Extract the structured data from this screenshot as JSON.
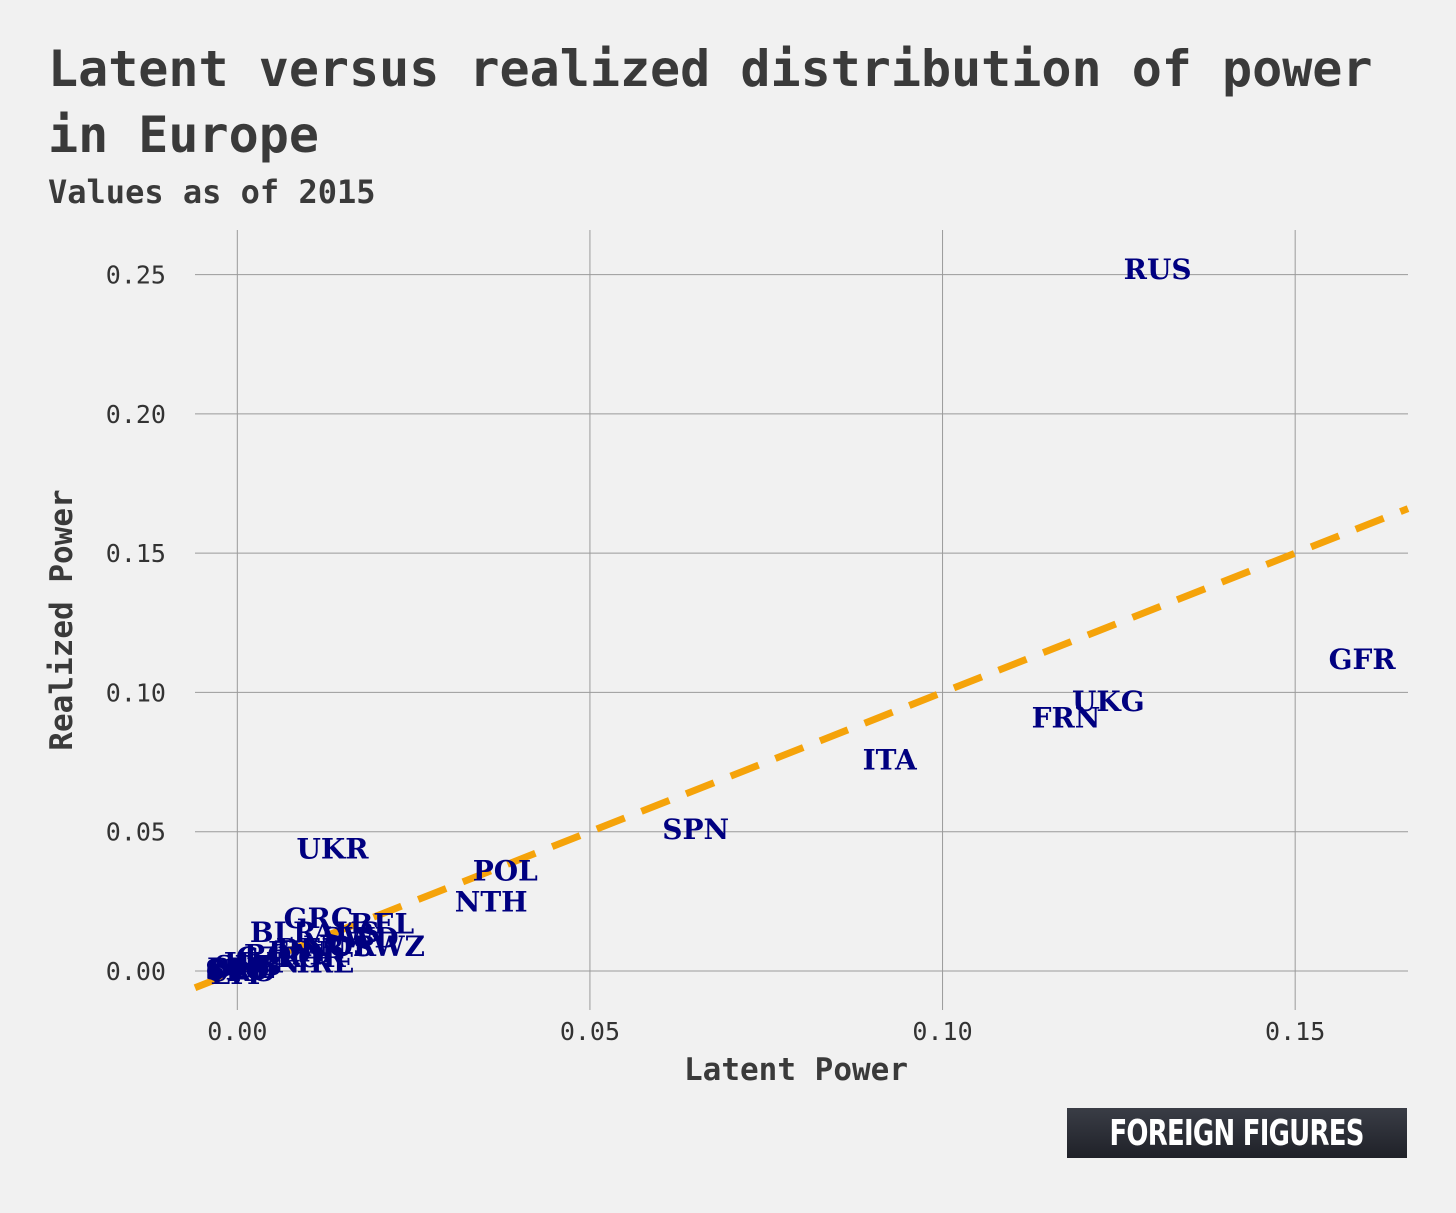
{
  "chart_data": {
    "type": "scatter",
    "title": "Latent versus realized distribution of power in Europe",
    "subtitle": "Values as of 2015",
    "xlabel": "Latent Power",
    "ylabel": "Realized Power",
    "xlim": [
      -0.006,
      0.166
    ],
    "ylim": [
      -0.014,
      0.266
    ],
    "xticks": [
      0.0,
      0.05,
      0.1,
      0.15
    ],
    "yticks": [
      0.0,
      0.05,
      0.1,
      0.15,
      0.2,
      0.25
    ],
    "xtick_labels": [
      "0.00",
      "0.05",
      "0.10",
      "0.15"
    ],
    "ytick_labels": [
      "0.00",
      "0.05",
      "0.10",
      "0.15",
      "0.20",
      "0.25"
    ],
    "grid": true,
    "reference_line": {
      "slope": 1,
      "intercept": 0,
      "style": "dashed",
      "color": "#f5a30a"
    },
    "label_color": "#000080",
    "points": [
      {
        "label": "RUS",
        "x": 0.1305,
        "y": 0.252
      },
      {
        "label": "GFR",
        "x": 0.1595,
        "y": 0.112
      },
      {
        "label": "UKG",
        "x": 0.1235,
        "y": 0.097
      },
      {
        "label": "FRN",
        "x": 0.1175,
        "y": 0.091
      },
      {
        "label": "ITA",
        "x": 0.0925,
        "y": 0.076
      },
      {
        "label": "SPN",
        "x": 0.065,
        "y": 0.051
      },
      {
        "label": "UKR",
        "x": 0.0135,
        "y": 0.044
      },
      {
        "label": "POL",
        "x": 0.038,
        "y": 0.036
      },
      {
        "label": "NTH",
        "x": 0.036,
        "y": 0.025
      },
      {
        "label": "GRC",
        "x": 0.0115,
        "y": 0.019
      },
      {
        "label": "BEL",
        "x": 0.0205,
        "y": 0.017
      },
      {
        "label": "BLR",
        "x": 0.0065,
        "y": 0.014
      },
      {
        "label": "AUS",
        "x": 0.0155,
        "y": 0.014
      },
      {
        "label": "SWD",
        "x": 0.0175,
        "y": 0.012
      },
      {
        "label": "SWZ",
        "x": 0.0215,
        "y": 0.009
      },
      {
        "label": "NOR",
        "x": 0.0145,
        "y": 0.009
      },
      {
        "label": "DEN",
        "x": 0.0105,
        "y": 0.008
      },
      {
        "label": "FIN",
        "x": 0.0085,
        "y": 0.007
      },
      {
        "label": "POR",
        "x": 0.0105,
        "y": 0.005
      },
      {
        "label": "ROM",
        "x": 0.0065,
        "y": 0.006
      },
      {
        "label": "CZR",
        "x": 0.0045,
        "y": 0.005
      },
      {
        "label": "IRE",
        "x": 0.0125,
        "y": 0.003
      },
      {
        "label": "HUN",
        "x": 0.0035,
        "y": 0.003
      },
      {
        "label": "SRB",
        "x": 0.0015,
        "y": 0.002
      },
      {
        "label": "BUL",
        "x": 0.0005,
        "y": 0.001
      },
      {
        "label": "SLO",
        "x": 0.0,
        "y": 0.0005
      },
      {
        "label": "CRO",
        "x": 0.0005,
        "y": 0.0
      },
      {
        "label": "LIT",
        "x": 0.0,
        "y": -0.001
      }
    ]
  },
  "branding": {
    "text": "FOREIGN FIGURES"
  }
}
